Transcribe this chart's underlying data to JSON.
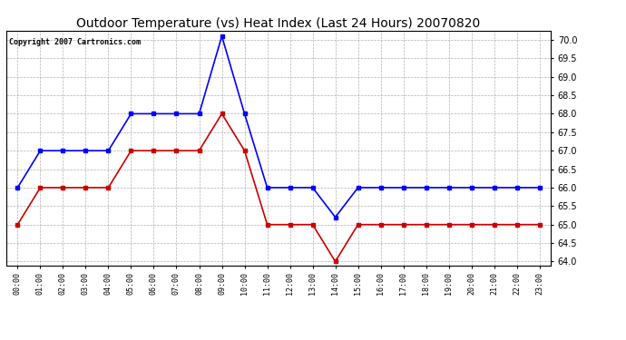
{
  "title": "Outdoor Temperature (vs) Heat Index (Last 24 Hours) 20070820",
  "copyright_text": "Copyright 2007 Cartronics.com",
  "hours": [
    "00:00",
    "01:00",
    "02:00",
    "03:00",
    "04:00",
    "05:00",
    "06:00",
    "07:00",
    "08:00",
    "09:00",
    "10:00",
    "11:00",
    "12:00",
    "13:00",
    "14:00",
    "15:00",
    "16:00",
    "17:00",
    "18:00",
    "19:00",
    "20:00",
    "21:00",
    "22:00",
    "23:00"
  ],
  "blue_data": [
    66.0,
    67.0,
    67.0,
    67.0,
    67.0,
    68.0,
    68.0,
    68.0,
    68.0,
    70.1,
    68.0,
    66.0,
    66.0,
    66.0,
    65.2,
    66.0,
    66.0,
    66.0,
    66.0,
    66.0,
    66.0,
    66.0,
    66.0,
    66.0
  ],
  "red_data": [
    65.0,
    66.0,
    66.0,
    66.0,
    66.0,
    67.0,
    67.0,
    67.0,
    67.0,
    68.0,
    67.0,
    65.0,
    65.0,
    65.0,
    64.0,
    65.0,
    65.0,
    65.0,
    65.0,
    65.0,
    65.0,
    65.0,
    65.0,
    65.0
  ],
  "blue_color": "#0000ff",
  "red_color": "#cc0000",
  "bg_color": "#ffffff",
  "plot_bg_color": "#ffffff",
  "grid_color": "#aaaaaa",
  "ylim": [
    63.9,
    70.25
  ],
  "yticks": [
    64.0,
    64.5,
    65.0,
    65.5,
    66.0,
    66.5,
    67.0,
    67.5,
    68.0,
    68.5,
    69.0,
    69.5,
    70.0
  ],
  "title_fontsize": 10,
  "copyright_fontsize": 6,
  "marker": "s",
  "markersize": 2.5,
  "linewidth": 1.2
}
